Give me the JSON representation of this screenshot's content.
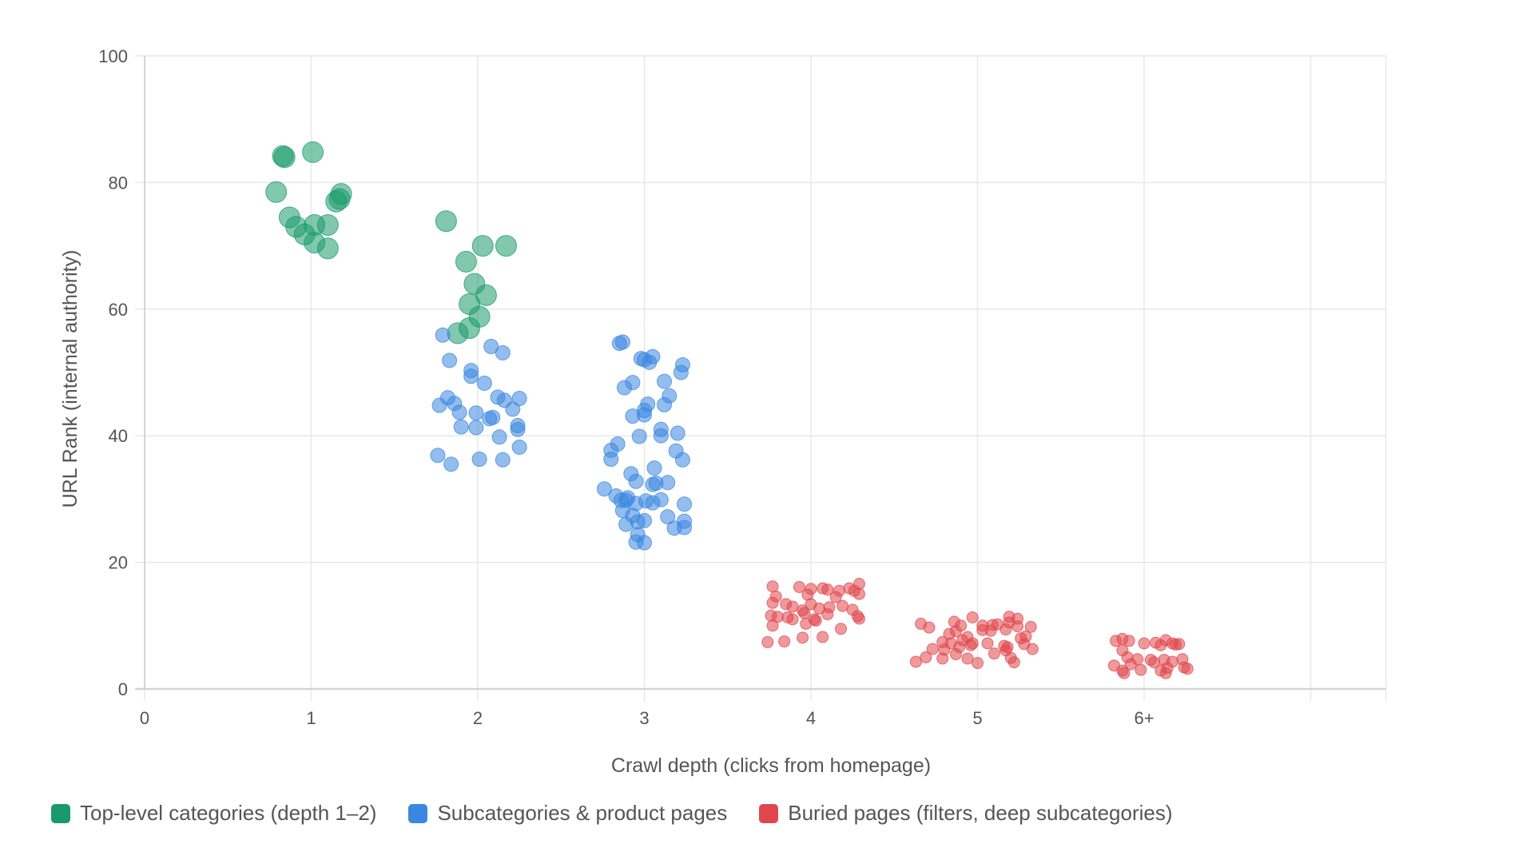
{
  "chart_data": {
    "type": "scatter",
    "title": "",
    "xlabel": "Crawl depth (clicks from homepage)",
    "ylabel": "URL Rank (internal authority)",
    "xlim": [
      0,
      7.5
    ],
    "ylim": [
      0,
      100
    ],
    "x_ticks": [
      {
        "value": 0,
        "label": "0"
      },
      {
        "value": 1,
        "label": "1"
      },
      {
        "value": 2,
        "label": "2"
      },
      {
        "value": 3,
        "label": "3"
      },
      {
        "value": 4,
        "label": "4"
      },
      {
        "value": 5,
        "label": "5"
      },
      {
        "value": 6,
        "label": "6+"
      }
    ],
    "x_gridlines": [
      0,
      1,
      2,
      3,
      4,
      5,
      6,
      7
    ],
    "y_ticks": [
      0,
      20,
      40,
      60,
      80,
      100
    ],
    "grid": true,
    "legend_position": "bottom-left",
    "series": [
      {
        "name": "Top-level categories (depth 1–2)",
        "color": "#1a9a6c",
        "radius": 13,
        "points": [
          [
            0.83,
            84.2
          ],
          [
            0.84,
            84.0
          ],
          [
            1.01,
            84.8
          ],
          [
            0.79,
            78.5
          ],
          [
            1.18,
            78.2
          ],
          [
            1.15,
            77.0
          ],
          [
            1.17,
            77.4
          ],
          [
            0.87,
            74.5
          ],
          [
            0.91,
            73.0
          ],
          [
            0.96,
            71.8
          ],
          [
            1.02,
            73.3
          ],
          [
            1.1,
            73.3
          ],
          [
            1.02,
            70.5
          ],
          [
            1.1,
            69.6
          ],
          [
            1.81,
            73.9
          ],
          [
            2.03,
            70.0
          ],
          [
            2.17,
            70.0
          ],
          [
            1.93,
            67.5
          ],
          [
            1.98,
            64.0
          ],
          [
            2.05,
            62.2
          ],
          [
            1.95,
            60.8
          ],
          [
            2.01,
            58.8
          ],
          [
            1.95,
            57.0
          ],
          [
            1.88,
            56.2
          ]
        ]
      },
      {
        "name": "Subcategories & product pages",
        "color": "#3a87e0",
        "radius": 9,
        "points": [
          [
            1.79,
            55.9
          ],
          [
            1.83,
            51.9
          ],
          [
            2.08,
            54.1
          ],
          [
            2.15,
            53.1
          ],
          [
            1.96,
            50.3
          ],
          [
            1.96,
            49.4
          ],
          [
            2.04,
            48.3
          ],
          [
            1.82,
            46.0
          ],
          [
            1.77,
            44.8
          ],
          [
            1.86,
            45.1
          ],
          [
            1.89,
            43.7
          ],
          [
            1.99,
            43.6
          ],
          [
            2.12,
            46.1
          ],
          [
            2.16,
            45.6
          ],
          [
            2.25,
            45.9
          ],
          [
            2.21,
            44.2
          ],
          [
            2.07,
            42.7
          ],
          [
            2.09,
            42.9
          ],
          [
            1.9,
            41.4
          ],
          [
            1.99,
            41.3
          ],
          [
            2.24,
            41.6
          ],
          [
            2.24,
            41.0
          ],
          [
            2.13,
            39.8
          ],
          [
            2.25,
            38.2
          ],
          [
            1.76,
            36.9
          ],
          [
            1.84,
            35.5
          ],
          [
            2.01,
            36.3
          ],
          [
            2.15,
            36.2
          ],
          [
            2.85,
            54.6
          ],
          [
            2.87,
            54.8
          ],
          [
            2.98,
            52.2
          ],
          [
            3.0,
            52.0
          ],
          [
            3.05,
            52.5
          ],
          [
            3.03,
            51.6
          ],
          [
            3.23,
            51.2
          ],
          [
            3.22,
            50.0
          ],
          [
            2.88,
            47.6
          ],
          [
            2.93,
            48.4
          ],
          [
            3.12,
            48.6
          ],
          [
            3.15,
            46.3
          ],
          [
            3.12,
            44.9
          ],
          [
            3.02,
            45.0
          ],
          [
            3.0,
            44.0
          ],
          [
            2.93,
            43.1
          ],
          [
            3.0,
            43.3
          ],
          [
            3.1,
            41.0
          ],
          [
            3.1,
            40.0
          ],
          [
            3.2,
            40.4
          ],
          [
            2.97,
            39.9
          ],
          [
            2.84,
            38.7
          ],
          [
            2.8,
            37.7
          ],
          [
            2.8,
            36.3
          ],
          [
            3.19,
            37.6
          ],
          [
            3.23,
            36.2
          ],
          [
            3.06,
            34.9
          ],
          [
            2.92,
            34.0
          ],
          [
            2.95,
            32.8
          ],
          [
            3.07,
            32.5
          ],
          [
            3.05,
            32.3
          ],
          [
            3.14,
            32.6
          ],
          [
            2.76,
            31.6
          ],
          [
            2.83,
            30.5
          ],
          [
            2.86,
            29.8
          ],
          [
            2.89,
            29.8
          ],
          [
            2.9,
            30.2
          ],
          [
            2.95,
            29.3
          ],
          [
            3.01,
            29.7
          ],
          [
            3.05,
            29.4
          ],
          [
            3.1,
            29.9
          ],
          [
            3.24,
            29.2
          ],
          [
            2.87,
            28.2
          ],
          [
            2.93,
            27.4
          ],
          [
            3.14,
            27.2
          ],
          [
            2.96,
            26.4
          ],
          [
            3.0,
            26.6
          ],
          [
            2.89,
            26.0
          ],
          [
            3.18,
            25.4
          ],
          [
            3.24,
            25.5
          ],
          [
            3.24,
            26.5
          ],
          [
            2.96,
            24.4
          ],
          [
            2.95,
            23.2
          ],
          [
            3.0,
            23.1
          ]
        ]
      },
      {
        "name": "Buried pages (filters, deep subcategories)",
        "color": "#e0474c",
        "radius": 7,
        "points": [
          [
            3.77,
            16.2
          ],
          [
            3.93,
            16.1
          ],
          [
            4.0,
            15.8
          ],
          [
            4.07,
            15.9
          ],
          [
            4.1,
            15.7
          ],
          [
            4.17,
            15.5
          ],
          [
            4.26,
            15.5
          ],
          [
            4.23,
            15.9
          ],
          [
            4.29,
            15.0
          ],
          [
            4.29,
            16.6
          ],
          [
            3.79,
            14.6
          ],
          [
            3.98,
            14.9
          ],
          [
            4.15,
            14.5
          ],
          [
            3.77,
            13.6
          ],
          [
            3.85,
            13.4
          ],
          [
            3.89,
            13.0
          ],
          [
            3.96,
            12.0
          ],
          [
            4.0,
            13.4
          ],
          [
            4.05,
            12.7
          ],
          [
            4.11,
            12.9
          ],
          [
            4.19,
            13.1
          ],
          [
            4.25,
            12.5
          ],
          [
            4.28,
            11.5
          ],
          [
            3.76,
            11.6
          ],
          [
            3.8,
            11.4
          ],
          [
            3.86,
            11.3
          ],
          [
            3.89,
            11.0
          ],
          [
            3.95,
            12.4
          ],
          [
            4.02,
            11.0
          ],
          [
            4.1,
            11.8
          ],
          [
            4.29,
            11.1
          ],
          [
            3.77,
            10.0
          ],
          [
            3.97,
            10.3
          ],
          [
            4.03,
            10.8
          ],
          [
            4.18,
            9.5
          ],
          [
            3.74,
            7.4
          ],
          [
            3.84,
            7.5
          ],
          [
            3.95,
            8.1
          ],
          [
            4.07,
            8.2
          ],
          [
            4.66,
            10.3
          ],
          [
            4.71,
            9.7
          ],
          [
            4.86,
            10.6
          ],
          [
            4.9,
            10.0
          ],
          [
            4.97,
            11.3
          ],
          [
            5.03,
            10.0
          ],
          [
            5.09,
            10.1
          ],
          [
            5.12,
            10.2
          ],
          [
            5.19,
            11.4
          ],
          [
            5.24,
            11.1
          ],
          [
            5.19,
            10.5
          ],
          [
            5.24,
            9.9
          ],
          [
            5.32,
            9.8
          ],
          [
            4.83,
            8.7
          ],
          [
            4.87,
            9.1
          ],
          [
            4.94,
            8.2
          ],
          [
            5.03,
            9.3
          ],
          [
            5.08,
            9.2
          ],
          [
            5.17,
            9.4
          ],
          [
            5.26,
            8.0
          ],
          [
            5.29,
            8.3
          ],
          [
            4.79,
            7.4
          ],
          [
            4.84,
            7.2
          ],
          [
            4.91,
            7.7
          ],
          [
            4.97,
            7.2
          ],
          [
            5.06,
            7.2
          ],
          [
            5.16,
            6.8
          ],
          [
            5.18,
            6.6
          ],
          [
            5.28,
            7.1
          ],
          [
            5.33,
            6.3
          ],
          [
            4.73,
            6.3
          ],
          [
            4.8,
            6.2
          ],
          [
            4.89,
            6.6
          ],
          [
            4.96,
            6.9
          ],
          [
            5.1,
            5.6
          ],
          [
            5.17,
            6.1
          ],
          [
            4.69,
            5.0
          ],
          [
            4.79,
            4.8
          ],
          [
            4.87,
            5.5
          ],
          [
            4.94,
            4.8
          ],
          [
            5.0,
            4.1
          ],
          [
            5.2,
            4.9
          ],
          [
            5.22,
            4.2
          ],
          [
            4.63,
            4.3
          ],
          [
            5.83,
            7.6
          ],
          [
            5.87,
            7.9
          ],
          [
            5.91,
            7.6
          ],
          [
            6.0,
            7.2
          ],
          [
            6.07,
            7.3
          ],
          [
            6.13,
            7.7
          ],
          [
            6.17,
            7.2
          ],
          [
            6.19,
            7.0
          ],
          [
            6.21,
            7.1
          ],
          [
            5.87,
            6.1
          ],
          [
            6.1,
            6.9
          ],
          [
            5.9,
            5.0
          ],
          [
            5.96,
            4.7
          ],
          [
            6.04,
            4.6
          ],
          [
            6.12,
            4.6
          ],
          [
            6.23,
            4.7
          ],
          [
            5.82,
            3.7
          ],
          [
            5.92,
            3.9
          ],
          [
            6.06,
            4.2
          ],
          [
            6.17,
            4.3
          ],
          [
            5.98,
            3.0
          ],
          [
            5.87,
            2.9
          ],
          [
            5.88,
            2.5
          ],
          [
            6.1,
            2.9
          ],
          [
            6.13,
            2.5
          ],
          [
            6.14,
            3.3
          ],
          [
            6.24,
            3.4
          ],
          [
            6.26,
            3.2
          ]
        ]
      }
    ]
  },
  "legend": [
    {
      "label": "Top-level categories (depth 1–2)",
      "color": "#1a9a6c"
    },
    {
      "label": "Subcategories & product pages",
      "color": "#3a87e0"
    },
    {
      "label": "Buried pages (filters, deep subcategories)",
      "color": "#e0474c"
    }
  ]
}
